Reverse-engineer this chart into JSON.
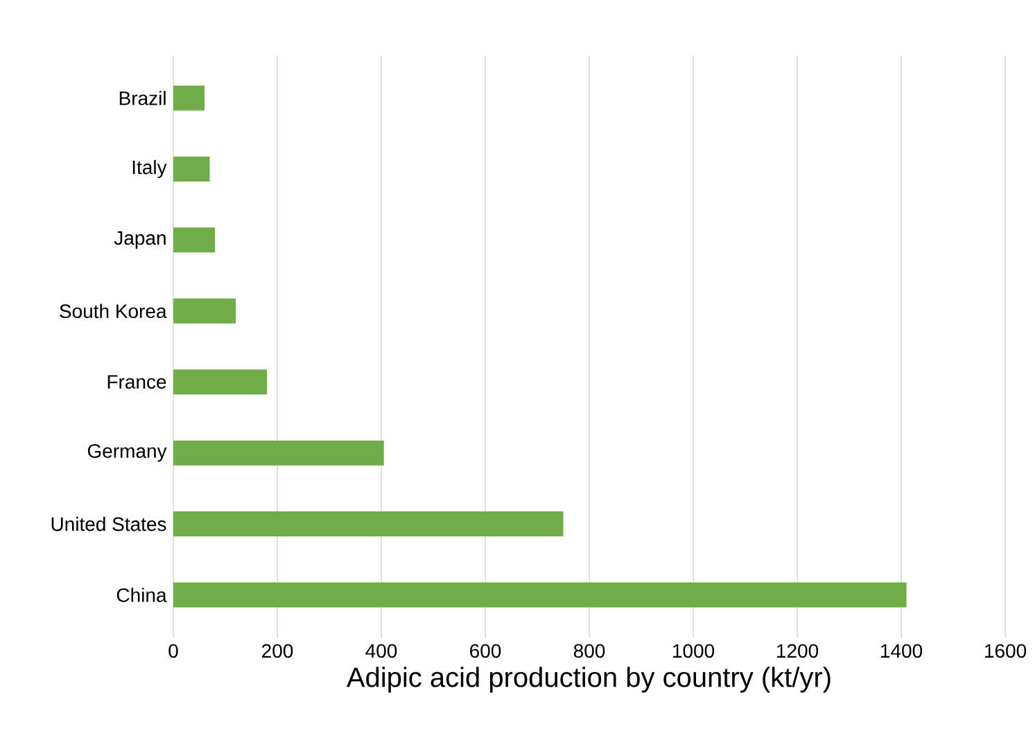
{
  "chart_data": {
    "type": "bar",
    "orientation": "horizontal",
    "xlabel": "Adipic acid production by country (kt/yr)",
    "categories": [
      "Brazil",
      "Italy",
      "Japan",
      "South Korea",
      "France",
      "Germany",
      "United States",
      "China"
    ],
    "values": [
      60,
      70,
      80,
      120,
      180,
      405,
      750,
      1410
    ],
    "color": "#70ad47",
    "xlim": [
      0,
      1600
    ],
    "xticks": [
      0,
      200,
      400,
      600,
      800,
      1000,
      1200,
      1400,
      1600
    ],
    "grid": "x"
  }
}
